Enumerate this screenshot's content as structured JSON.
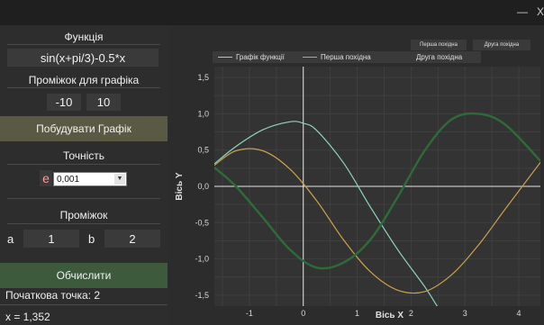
{
  "window": {
    "minimize_label": "—",
    "close_label": "X"
  },
  "sidebar": {
    "function_label": "Функція",
    "function_value": "sin(x+pi/3)-0.5*x",
    "graph_range_label": "Проміжок для графіка",
    "graph_range_min": "-10",
    "graph_range_max": "10",
    "build_button": "Побудувати Графік",
    "precision_label": "Точність",
    "epsilon_symbol": "e",
    "epsilon_value": "0,001",
    "interval_label": "Проміжок",
    "a_label": "a",
    "a_value": "1",
    "b_label": "b",
    "b_value": "2",
    "calc_button": "Обчислити",
    "start_point_text": "Початкова точка: 2",
    "result_text": "x = 1,352"
  },
  "plot_buttons": {
    "first_derivative": "Перша похідна",
    "second_derivative": "Друга похідна"
  },
  "colors": {
    "function": "#8fd3c0",
    "first_derivative": "#c9a24a",
    "second_derivative": "#2e6b3a",
    "axis": "#e6e6e6"
  },
  "chart_data": {
    "type": "line",
    "xlabel": "Вісь X",
    "ylabel": "Вісь Y",
    "xlim": [
      -1.65,
      4.4
    ],
    "ylim": [
      -1.65,
      1.65
    ],
    "x_ticks": [
      -1,
      0,
      1,
      2,
      3,
      4
    ],
    "y_ticks": [
      1.5,
      1.0,
      0.5,
      0.0,
      -0.5,
      -1.0,
      -1.5
    ],
    "x_tick_labels": [
      "-1",
      "0",
      "1",
      "2",
      "3",
      "4"
    ],
    "y_tick_labels": [
      "1,5",
      "1,0",
      "0,5",
      "0,0",
      "-0,5",
      "-1,0",
      "-1,5"
    ],
    "grid": true,
    "legend_position": "top",
    "series": [
      {
        "name": "Графік функції",
        "color": "#8fd3c0",
        "x": [
          -1.65,
          -1.25,
          -0.75,
          -0.25,
          0,
          0.25,
          0.75,
          1.25,
          1.75,
          2.25,
          2.5
        ],
        "y": [
          0.31,
          0.55,
          0.78,
          0.89,
          0.87,
          0.77,
          0.32,
          -0.29,
          -0.87,
          -1.38,
          -1.67
        ]
      },
      {
        "name": "Перша похідна",
        "color": "#c9a24a",
        "x": [
          -1.65,
          -1.25,
          -0.75,
          -0.25,
          0.25,
          0.75,
          1.25,
          1.75,
          2.25,
          2.75,
          3.25,
          3.75,
          4.4
        ],
        "y": [
          0.29,
          0.49,
          0.49,
          0.24,
          -0.2,
          -0.74,
          -1.18,
          -1.43,
          -1.45,
          -1.22,
          -0.81,
          -0.31,
          0.33
        ]
      },
      {
        "name": "Друга похідна",
        "color": "#2e6b3a",
        "x": [
          -1.65,
          -1.25,
          -0.75,
          -0.25,
          0.25,
          0.75,
          1.25,
          1.75,
          2.25,
          2.75,
          3.25,
          3.75,
          4.4
        ],
        "y": [
          0.26,
          0.0,
          -0.43,
          -0.87,
          -1.12,
          -1.05,
          -0.73,
          -0.15,
          0.49,
          0.92,
          1.0,
          0.85,
          0.35
        ]
      }
    ]
  }
}
